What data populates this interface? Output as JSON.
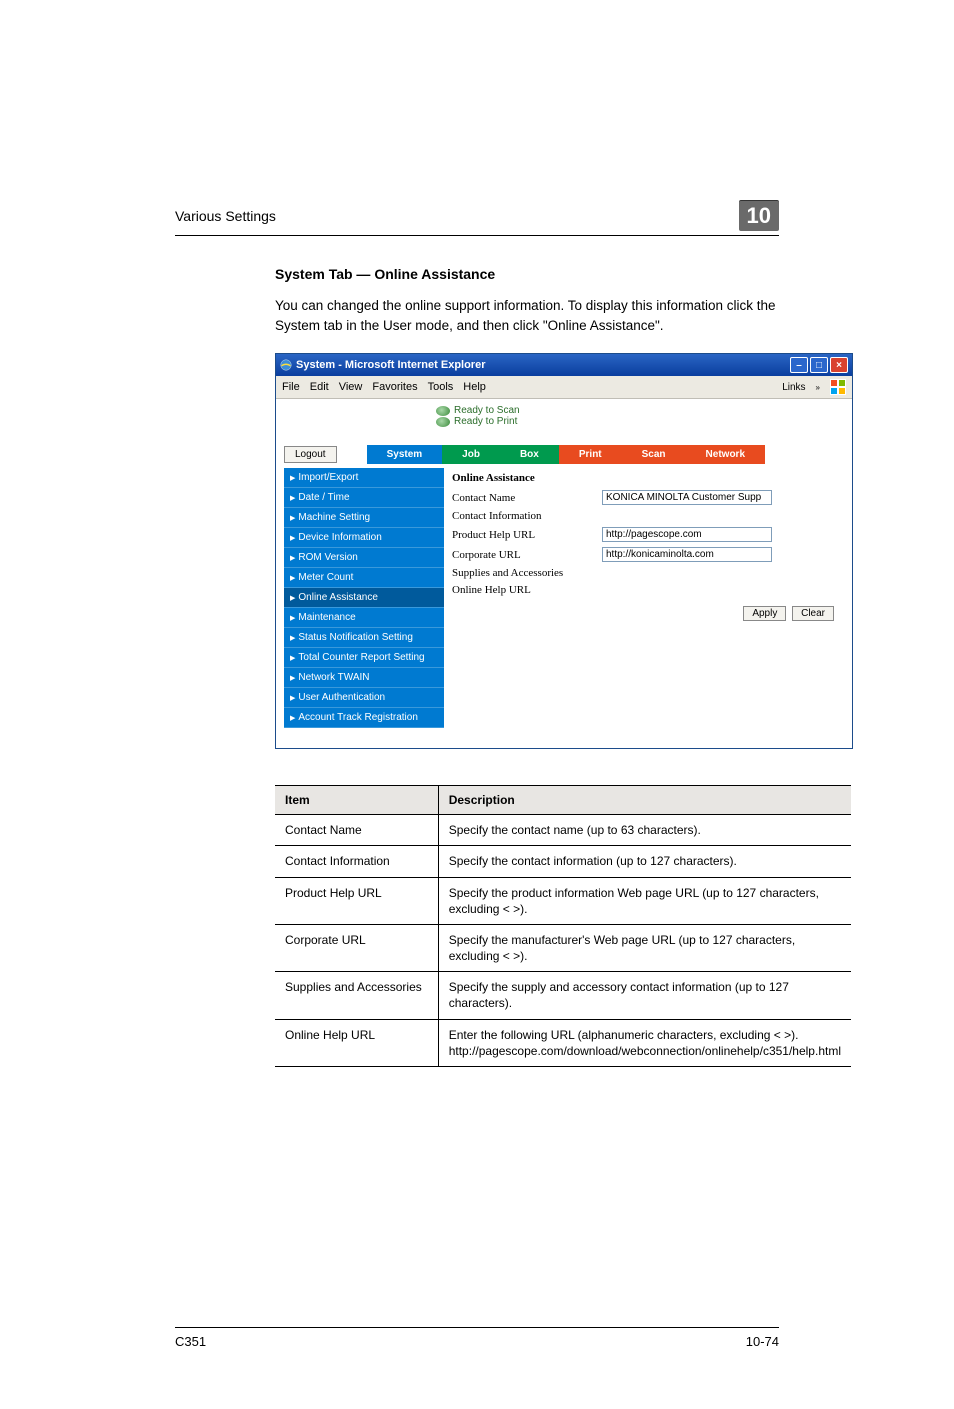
{
  "header": {
    "title": "Various Settings",
    "chapter": "10"
  },
  "section": {
    "title": "System Tab — Online Assistance",
    "body": "You can changed the online support information. To display this information click the System tab in the User mode, and then click \"Online Assistance\"."
  },
  "screenshot": {
    "titlebar": "System - Microsoft Internet Explorer",
    "menus": [
      "File",
      "Edit",
      "View",
      "Favorites",
      "Tools",
      "Help"
    ],
    "links_label": "Links",
    "status": {
      "scan": "Ready to Scan",
      "print": "Ready to Print"
    },
    "logout_label": "Logout",
    "tabs": {
      "system": "System",
      "job": "Job",
      "box": "Box",
      "print": "Print",
      "scan": "Scan",
      "network": "Network"
    },
    "sidebar": [
      "Import/Export",
      "Date / Time",
      "Machine Setting",
      "Device Information",
      "ROM Version",
      "Meter Count",
      "Online Assistance",
      "Maintenance",
      "Status Notification Setting",
      "Total Counter Report Setting",
      "Network TWAIN",
      "User Authentication",
      "Account Track Registration"
    ],
    "sidebar_selected_index": 6,
    "form": {
      "title": "Online Assistance",
      "rows": [
        {
          "label": "Contact Name",
          "value": "KONICA MINOLTA Customer Supp"
        },
        {
          "label": "Contact Information",
          "value": ""
        },
        {
          "label": "Product Help URL",
          "value": "http://pagescope.com"
        },
        {
          "label": "Corporate URL",
          "value": "http://konicaminolta.com"
        },
        {
          "label": "Supplies and Accessories",
          "value": ""
        },
        {
          "label": "Online Help URL",
          "value": ""
        }
      ],
      "apply_label": "Apply",
      "clear_label": "Clear"
    },
    "colors": {
      "titlebar_bg": "#1956b4",
      "tab_system": "#007ad1",
      "tab_green": "#009a4e",
      "tab_orange": "#e84b1f",
      "sidebar_bg": "#007ad1"
    }
  },
  "table": {
    "columns": [
      "Item",
      "Description"
    ],
    "rows": [
      [
        "Contact Name",
        "Specify the contact name (up to 63 characters)."
      ],
      [
        "Contact Information",
        "Specify the contact information (up to 127 characters)."
      ],
      [
        "Product Help URL",
        "Specify the product information Web page URL (up to 127 characters, excluding < >)."
      ],
      [
        "Corporate URL",
        "Specify the manufacturer's Web page URL (up to 127 characters, excluding < >)."
      ],
      [
        "Supplies and Accessories",
        "Specify the supply and accessory contact information (up to 127 characters)."
      ],
      [
        "Online Help URL",
        "Enter the following URL (alphanumeric characters, excluding < >). http://pagescope.com/download/webconnection/onlinehelp/c351/help.html"
      ]
    ]
  },
  "footer": {
    "left": "C351",
    "right": "10-74"
  }
}
